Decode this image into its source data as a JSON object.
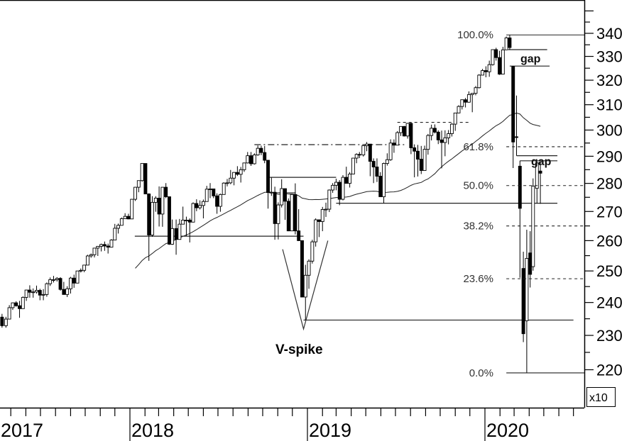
{
  "chart_data": {
    "type": "candlestick",
    "y_scale": "log",
    "ylim": [
      215,
      352
    ],
    "y_multiplier_label": "x10",
    "y_ticks": [
      220,
      230,
      240,
      250,
      260,
      270,
      280,
      290,
      300,
      310,
      320,
      330,
      340
    ],
    "x_year_labels": [
      "2017",
      "2018",
      "2019",
      "2020"
    ],
    "moving_average": {
      "period_weeks": 40
    },
    "candles_ohlc": [
      [
        "2017-04-13",
        235.5,
        236.5,
        232.3,
        232.9
      ],
      [
        "2017-04-21",
        232.9,
        235.6,
        232.3,
        234.9
      ],
      [
        "2017-04-28",
        234.9,
        239.2,
        234.9,
        238.4
      ],
      [
        "2017-05-05",
        238.4,
        240.0,
        237.7,
        239.9
      ],
      [
        "2017-05-12",
        239.9,
        240.4,
        238.7,
        239.0
      ],
      [
        "2017-05-19",
        239.0,
        240.5,
        235.3,
        238.1
      ],
      [
        "2017-05-26",
        238.1,
        241.9,
        238.1,
        241.6
      ],
      [
        "2017-06-02",
        241.6,
        244.0,
        240.5,
        243.9
      ],
      [
        "2017-06-09",
        243.9,
        245.4,
        241.5,
        243.2
      ],
      [
        "2017-06-16",
        243.2,
        244.4,
        241.5,
        243.3
      ],
      [
        "2017-06-23",
        243.3,
        245.3,
        242.8,
        243.8
      ],
      [
        "2017-06-30",
        243.8,
        244.3,
        240.7,
        242.3
      ],
      [
        "2017-07-07",
        242.3,
        244.2,
        240.7,
        242.5
      ],
      [
        "2017-07-14",
        242.5,
        246.3,
        241.8,
        245.9
      ],
      [
        "2017-07-21",
        245.9,
        247.9,
        245.2,
        247.2
      ],
      [
        "2017-07-28",
        247.2,
        248.4,
        246.3,
        247.2
      ],
      [
        "2017-08-04",
        247.2,
        248.0,
        246.6,
        247.6
      ],
      [
        "2017-08-11",
        247.6,
        248.0,
        243.7,
        244.1
      ],
      [
        "2017-08-18",
        244.1,
        246.5,
        242.5,
        242.5
      ],
      [
        "2017-08-25",
        242.5,
        245.1,
        241.7,
        244.3
      ],
      [
        "2017-09-01",
        244.3,
        248.1,
        242.8,
        247.7
      ],
      [
        "2017-09-08",
        247.7,
        248.8,
        244.6,
        246.1
      ],
      [
        "2017-09-15",
        246.1,
        250.0,
        246.1,
        250.0
      ],
      [
        "2017-09-22",
        250.0,
        250.8,
        249.5,
        250.2
      ],
      [
        "2017-09-29",
        250.2,
        251.9,
        249.6,
        251.9
      ],
      [
        "2017-10-06",
        251.9,
        255.3,
        251.9,
        254.9
      ],
      [
        "2017-10-13",
        254.9,
        255.7,
        254.3,
        255.3
      ],
      [
        "2017-10-20",
        255.3,
        257.6,
        254.4,
        257.5
      ],
      [
        "2017-10-27",
        257.5,
        258.2,
        254.9,
        258.1
      ],
      [
        "2017-11-03",
        258.1,
        259.0,
        256.4,
        258.7
      ],
      [
        "2017-11-10",
        258.7,
        259.7,
        256.6,
        258.2
      ],
      [
        "2017-11-17",
        258.2,
        259.0,
        255.7,
        257.8
      ],
      [
        "2017-11-24",
        257.8,
        260.5,
        257.7,
        260.2
      ],
      [
        "2017-12-01",
        260.2,
        265.7,
        260.2,
        264.2
      ],
      [
        "2017-12-08",
        264.2,
        265.8,
        262.4,
        265.2
      ],
      [
        "2017-12-15",
        265.2,
        267.9,
        265.2,
        267.5
      ],
      [
        "2017-12-22",
        267.5,
        269.4,
        267.5,
        268.3
      ],
      [
        "2017-12-29",
        268.3,
        269.2,
        267.3,
        267.4
      ],
      [
        "2018-01-05",
        267.4,
        274.4,
        267.4,
        274.3
      ],
      [
        "2018-01-12",
        274.3,
        278.7,
        273.7,
        278.6
      ],
      [
        "2018-01-19",
        278.6,
        281.0,
        276.8,
        281.0
      ],
      [
        "2018-01-26",
        281.0,
        287.3,
        280.6,
        287.3
      ],
      [
        "2018-02-02",
        287.3,
        287.3,
        276.2,
        276.2
      ],
      [
        "2018-02-09",
        276.2,
        276.4,
        253.3,
        261.9
      ],
      [
        "2018-02-16",
        261.9,
        275.4,
        261.3,
        273.2
      ],
      [
        "2018-02-23",
        273.2,
        275.4,
        269.9,
        274.7
      ],
      [
        "2018-03-02",
        274.7,
        278.9,
        264.8,
        269.1
      ],
      [
        "2018-03-09",
        269.1,
        278.6,
        264.7,
        278.6
      ],
      [
        "2018-03-16",
        278.6,
        280.1,
        274.7,
        275.2
      ],
      [
        "2018-03-23",
        275.2,
        275.2,
        258.6,
        258.8
      ],
      [
        "2018-03-29",
        258.8,
        267.2,
        258.6,
        264.1
      ],
      [
        "2018-04-06",
        264.1,
        267.2,
        255.3,
        260.4
      ],
      [
        "2018-04-13",
        260.4,
        267.4,
        260.4,
        265.6
      ],
      [
        "2018-04-20",
        265.6,
        271.7,
        265.6,
        267.0
      ],
      [
        "2018-04-27",
        267.0,
        268.2,
        261.6,
        267.0
      ],
      [
        "2018-05-04",
        267.0,
        267.6,
        259.4,
        266.3
      ],
      [
        "2018-05-11",
        266.3,
        273.2,
        266.3,
        272.8
      ],
      [
        "2018-05-18",
        272.8,
        274.3,
        270.1,
        271.3
      ],
      [
        "2018-05-25",
        271.3,
        273.9,
        270.7,
        272.1
      ],
      [
        "2018-06-01",
        272.1,
        274.2,
        267.6,
        273.5
      ],
      [
        "2018-06-08",
        273.5,
        279.1,
        273.5,
        277.9
      ],
      [
        "2018-06-15",
        277.9,
        280.1,
        274.7,
        278.0
      ],
      [
        "2018-06-22",
        278.0,
        278.0,
        274.7,
        275.5
      ],
      [
        "2018-06-29",
        275.5,
        276.4,
        269.2,
        271.8
      ],
      [
        "2018-07-06",
        271.8,
        276.3,
        269.9,
        276.0
      ],
      [
        "2018-07-13",
        276.0,
        280.4,
        276.0,
        280.1
      ],
      [
        "2018-07-20",
        280.1,
        281.6,
        278.9,
        280.2
      ],
      [
        "2018-07-27",
        280.2,
        284.9,
        279.7,
        281.9
      ],
      [
        "2018-08-03",
        281.9,
        284.1,
        279.3,
        284.0
      ],
      [
        "2018-08-10",
        284.0,
        286.3,
        282.7,
        283.3
      ],
      [
        "2018-08-17",
        283.3,
        286.0,
        280.3,
        285.0
      ],
      [
        "2018-08-24",
        285.0,
        287.6,
        284.2,
        287.5
      ],
      [
        "2018-08-31",
        287.5,
        291.6,
        287.3,
        290.2
      ],
      [
        "2018-09-07",
        290.2,
        291.6,
        286.4,
        287.2
      ],
      [
        "2018-09-14",
        287.2,
        291.1,
        286.9,
        290.5
      ],
      [
        "2018-09-21",
        290.5,
        294.1,
        290.2,
        293.0
      ],
      [
        "2018-09-28",
        293.0,
        294.0,
        290.4,
        291.4
      ],
      [
        "2018-10-05",
        291.4,
        293.9,
        287.4,
        288.5
      ],
      [
        "2018-10-12",
        288.5,
        288.5,
        271.0,
        276.7
      ],
      [
        "2018-10-19",
        276.7,
        282.1,
        275.5,
        276.8
      ],
      [
        "2018-10-26",
        276.8,
        278.8,
        260.3,
        265.8
      ],
      [
        "2018-11-02",
        265.8,
        273.2,
        260.4,
        272.3
      ],
      [
        "2018-11-09",
        272.3,
        281.5,
        271.4,
        278.1
      ],
      [
        "2018-11-16",
        278.1,
        278.1,
        267.1,
        273.6
      ],
      [
        "2018-11-23",
        273.6,
        274.6,
        263.2,
        263.3
      ],
      [
        "2018-11-30",
        263.3,
        276.0,
        263.3,
        276.0
      ],
      [
        "2018-12-07",
        276.0,
        280.0,
        262.1,
        263.3
      ],
      [
        "2018-12-14",
        263.3,
        270.8,
        259.9,
        260.0
      ],
      [
        "2018-12-21",
        260.0,
        260.1,
        241.7,
        241.7
      ],
      [
        "2018-12-28",
        241.7,
        252.0,
        234.6,
        248.6
      ],
      [
        "2019-01-04",
        248.6,
        253.8,
        244.3,
        253.2
      ],
      [
        "2019-01-11",
        253.2,
        260.3,
        252.4,
        259.6
      ],
      [
        "2019-01-18",
        259.6,
        267.6,
        258.0,
        267.1
      ],
      [
        "2019-01-25",
        267.1,
        267.2,
        261.2,
        266.5
      ],
      [
        "2019-02-01",
        266.5,
        271.6,
        263.2,
        270.7
      ],
      [
        "2019-02-08",
        270.7,
        273.1,
        268.1,
        270.8
      ],
      [
        "2019-02-15",
        270.8,
        277.8,
        269.8,
        277.6
      ],
      [
        "2019-02-22",
        277.6,
        280.1,
        276.6,
        279.3
      ],
      [
        "2019-03-01",
        279.3,
        281.7,
        277.5,
        280.4
      ],
      [
        "2019-03-08",
        280.4,
        281.2,
        272.2,
        274.3
      ],
      [
        "2019-03-15",
        274.3,
        283.0,
        273.9,
        282.2
      ],
      [
        "2019-03-22",
        282.2,
        286.1,
        280.0,
        280.0
      ],
      [
        "2019-03-29",
        280.0,
        284.1,
        278.5,
        283.4
      ],
      [
        "2019-04-05",
        283.4,
        289.3,
        283.4,
        289.3
      ],
      [
        "2019-04-12",
        289.3,
        291.1,
        287.4,
        290.7
      ],
      [
        "2019-04-18",
        290.7,
        291.6,
        289.3,
        290.5
      ],
      [
        "2019-04-26",
        290.5,
        294.0,
        289.9,
        294.0
      ],
      [
        "2019-05-03",
        294.0,
        295.4,
        291.9,
        294.6
      ],
      [
        "2019-05-10",
        294.6,
        294.6,
        282.6,
        288.1
      ],
      [
        "2019-05-17",
        288.1,
        289.2,
        280.1,
        286.0
      ],
      [
        "2019-05-24",
        286.0,
        289.2,
        280.5,
        282.6
      ],
      [
        "2019-05-31",
        282.6,
        284.1,
        275.2,
        275.2
      ],
      [
        "2019-06-07",
        275.2,
        287.6,
        272.9,
        287.3
      ],
      [
        "2019-06-14",
        287.3,
        291.1,
        286.5,
        288.7
      ],
      [
        "2019-06-21",
        288.7,
        296.4,
        288.3,
        295.0
      ],
      [
        "2019-06-28",
        295.0,
        296.4,
        291.3,
        294.2
      ],
      [
        "2019-07-05",
        294.2,
        299.6,
        294.2,
        299.0
      ],
      [
        "2019-07-12",
        299.0,
        301.4,
        297.7,
        301.4
      ],
      [
        "2019-07-19",
        301.4,
        301.6,
        297.5,
        297.7
      ],
      [
        "2019-07-26",
        297.7,
        302.8,
        296.7,
        302.6
      ],
      [
        "2019-08-02",
        302.6,
        302.9,
        290.8,
        293.2
      ],
      [
        "2019-08-09",
        293.2,
        294.5,
        282.2,
        291.9
      ],
      [
        "2019-08-16",
        291.9,
        294.3,
        282.5,
        288.9
      ],
      [
        "2019-08-23",
        288.9,
        293.9,
        283.4,
        284.7
      ],
      [
        "2019-08-30",
        284.7,
        294.0,
        284.7,
        292.6
      ],
      [
        "2019-09-06",
        292.6,
        298.5,
        290.6,
        297.9
      ],
      [
        "2019-09-13",
        297.9,
        302.1,
        296.0,
        300.7
      ],
      [
        "2019-09-20",
        300.7,
        302.2,
        298.7,
        299.2
      ],
      [
        "2019-09-27",
        299.2,
        299.9,
        294.6,
        296.2
      ],
      [
        "2019-10-04",
        296.2,
        299.8,
        285.5,
        295.2
      ],
      [
        "2019-10-11",
        295.2,
        299.9,
        290.0,
        297.0
      ],
      [
        "2019-10-18",
        297.0,
        300.0,
        294.5,
        298.6
      ],
      [
        "2019-10-25",
        298.6,
        302.7,
        297.5,
        302.3
      ],
      [
        "2019-11-01",
        302.3,
        306.7,
        299.7,
        306.7
      ],
      [
        "2019-11-08",
        306.7,
        309.8,
        306.6,
        309.3
      ],
      [
        "2019-11-15",
        309.3,
        312.0,
        308.1,
        312.0
      ],
      [
        "2019-11-22",
        312.0,
        312.7,
        308.9,
        311.0
      ],
      [
        "2019-11-29",
        311.0,
        315.4,
        310.8,
        314.1
      ],
      [
        "2019-12-06",
        314.1,
        314.6,
        307.0,
        314.6
      ],
      [
        "2019-12-13",
        314.6,
        317.6,
        313.8,
        316.9
      ],
      [
        "2019-12-20",
        316.9,
        322.5,
        316.6,
        322.1
      ],
      [
        "2019-12-27",
        322.1,
        324.7,
        322.1,
        324.0
      ],
      [
        "2020-01-03",
        324.0,
        325.8,
        321.2,
        323.5
      ],
      [
        "2020-01-10",
        323.5,
        328.2,
        321.4,
        326.5
      ],
      [
        "2020-01-17",
        326.5,
        332.9,
        326.1,
        332.9
      ],
      [
        "2020-01-24",
        332.9,
        333.7,
        328.2,
        329.5
      ],
      [
        "2020-01-31",
        329.5,
        332.4,
        322.2,
        322.5
      ],
      [
        "2020-02-07",
        322.5,
        334.1,
        322.5,
        332.8
      ],
      [
        "2020-02-14",
        332.8,
        338.6,
        332.8,
        338.0
      ],
      [
        "2020-02-21",
        338.0,
        339.3,
        332.9,
        333.8
      ],
      [
        "2020-02-28",
        325.7,
        325.9,
        285.6,
        295.4
      ],
      [
        "2020-03-06",
        297.4,
        313.7,
        290.2,
        297.2
      ],
      [
        "2020-03-13",
        286.3,
        288.3,
        247.8,
        271.1
      ],
      [
        "2020-03-20",
        250.8,
        256.3,
        228.0,
        230.5
      ],
      [
        "2020-03-27",
        234.4,
        263.7,
        219.1,
        254.1
      ],
      [
        "2020-04-03",
        255.9,
        263.2,
        244.7,
        248.9
      ],
      [
        "2020-04-09",
        251.4,
        281.8,
        250.1,
        279.0
      ],
      [
        "2020-04-17",
        278.2,
        287.9,
        272.8,
        287.5
      ],
      [
        "2020-04-24",
        284.5,
        288.0,
        272.7,
        283.7
      ]
    ],
    "fibonacci": {
      "levels": [
        {
          "label": "100.0%",
          "price": 339.3,
          "style": "solid"
        },
        {
          "label": "61.8%",
          "price": 293.6,
          "style": "dashed"
        },
        {
          "label": "50.0%",
          "price": 279.2,
          "style": "dashed"
        },
        {
          "label": "38.2%",
          "price": 265.0,
          "style": "dashed"
        },
        {
          "label": "23.6%",
          "price": 247.5,
          "style": "dashed"
        },
        {
          "label": "0.0%",
          "price": 219.1,
          "style": "solid"
        }
      ],
      "start_date": "2020-02-14"
    },
    "annotation_lines": [
      {
        "style": "solid",
        "price": 332.9,
        "from": "2020-02-18",
        "to": "2020-05-08"
      },
      {
        "style": "solid",
        "price": 325.9,
        "from": "2020-02-21",
        "to": "2020-05-13"
      },
      {
        "style": "solid",
        "price": 290.2,
        "from": "2020-03-06",
        "to": "2020-05-29"
      },
      {
        "style": "solid",
        "price": 288.3,
        "from": "2020-03-13",
        "to": "2020-05-29"
      },
      {
        "style": "solid",
        "price": 272.9,
        "from": "2019-03-01",
        "to": "2020-05-29"
      },
      {
        "style": "solid",
        "price": 261.5,
        "from": "2018-01-11",
        "to": "2018-12-24"
      },
      {
        "style": "solid",
        "price": 234.6,
        "from": "2018-12-24",
        "to": "2020-07-01"
      },
      {
        "style": "dashdot",
        "price": 294.4,
        "from": "2018-09-14",
        "to": "2019-07-19"
      },
      {
        "style": "dashed",
        "price": 303.0,
        "from": "2019-07-05",
        "to": "2019-12-03"
      },
      {
        "style": "solid",
        "price": 282.2,
        "from": "2018-10-12",
        "to": "2019-03-01"
      },
      {
        "style": "solid",
        "price": 276.6,
        "from": "2018-10-14",
        "to": "2018-12-08"
      }
    ],
    "v_spike_lines": [
      [
        "2018-11-11",
        257.1
      ],
      [
        "2018-12-24",
        231.9
      ],
      [
        "2019-02-12",
        260.0
      ]
    ],
    "annotations": {
      "gap_1": "gap",
      "gap_2": "gap",
      "v_spike": "V-spike"
    }
  }
}
